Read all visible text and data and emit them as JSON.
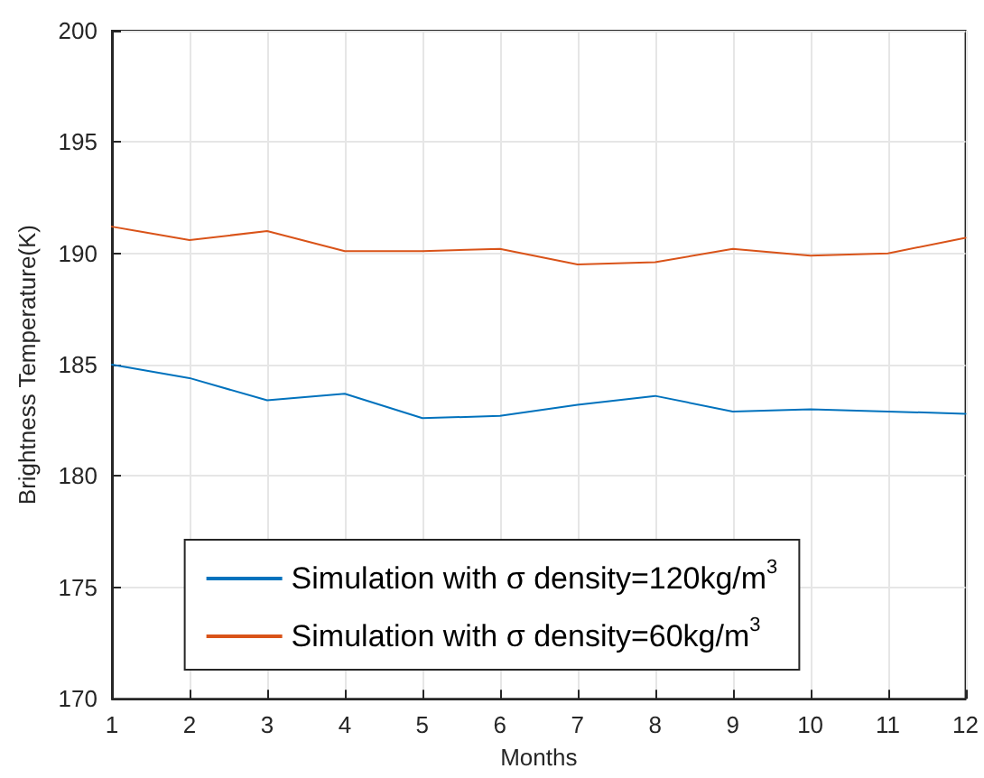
{
  "chart_data": {
    "type": "line",
    "xlabel": "Months",
    "ylabel": "Brightness Temperature(K)",
    "x": [
      1,
      2,
      3,
      4,
      5,
      6,
      7,
      8,
      9,
      10,
      11,
      12
    ],
    "series": [
      {
        "name": "Simulation with σ density=120kg/m$^{3}$",
        "color": "#0072bd",
        "values": [
          185.0,
          184.4,
          183.4,
          183.7,
          182.6,
          182.7,
          183.2,
          183.6,
          182.9,
          183.0,
          182.9,
          182.8
        ]
      },
      {
        "name": "Simulation with σ density=60kg/m$^{3}$",
        "color": "#d95319",
        "values": [
          191.2,
          190.6,
          191.0,
          190.1,
          190.1,
          190.2,
          189.5,
          189.6,
          190.2,
          189.9,
          190.0,
          190.7
        ]
      }
    ],
    "xlim": [
      1,
      12
    ],
    "xticks": [
      1,
      2,
      3,
      4,
      5,
      6,
      7,
      8,
      9,
      10,
      11,
      12
    ],
    "ylim": [
      170,
      200
    ],
    "yticks": [
      170,
      175,
      180,
      185,
      190,
      195,
      200
    ],
    "grid": true,
    "legend": "bottom",
    "marker": "none",
    "line_style": "solid"
  }
}
